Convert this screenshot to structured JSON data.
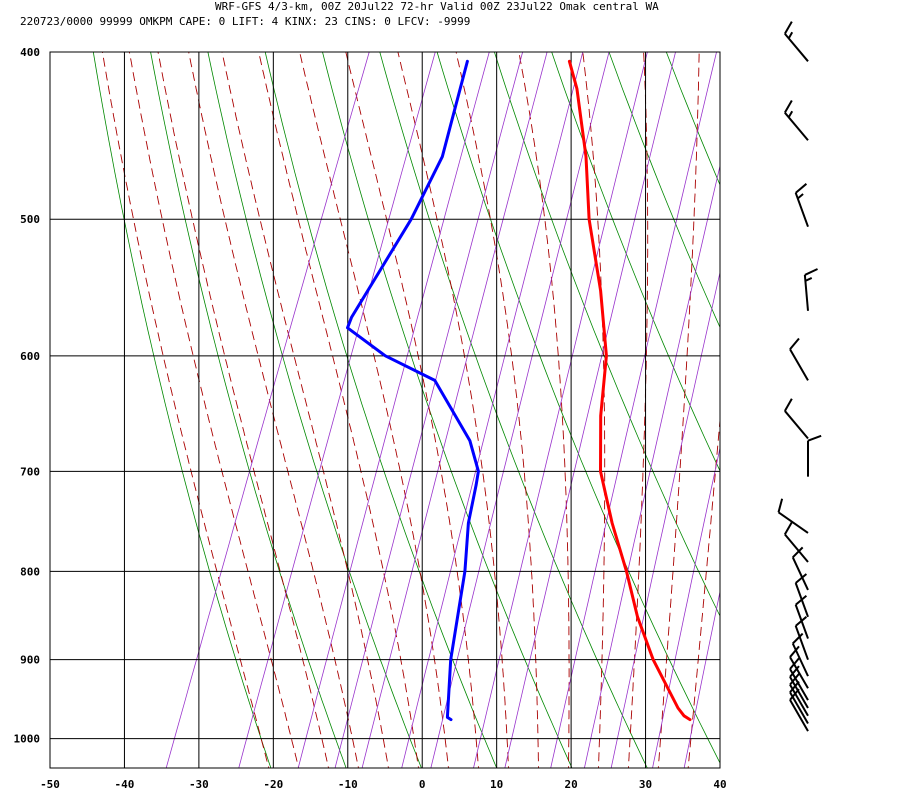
{
  "header": {
    "line1": "WRF-GFS 4/3-km, 00Z 20Jul22 72-hr Valid 00Z 23Jul22 Omak central WA",
    "line2": "220723/0000 99999  OMKPM   CAPE:     0 LIFT:     4 KINX:    23 CINS:     0 LFCV: -9999"
  },
  "chart_data": {
    "type": "line",
    "chart_kind": "skew-T log-p",
    "xlim": [
      -50,
      40
    ],
    "ylim_pressure": [
      1040,
      400
    ],
    "x_ticks": [
      -50,
      -40,
      -30,
      -20,
      -10,
      0,
      10,
      20,
      30,
      40
    ],
    "y_ticks": [
      400,
      500,
      600,
      700,
      800,
      900,
      1000
    ],
    "grid": true,
    "colors": {
      "temperature": "#ff0000",
      "dewpoint": "#0000ff",
      "dry_adiabat": "#008800",
      "moist_adiabat": "#aa0000",
      "mixing_ratio": "#9933cc",
      "grid": "#000000"
    },
    "series": [
      {
        "id": "temperature",
        "color": "#ff0000",
        "points": [
          {
            "p": 975,
            "t": 33.5
          },
          {
            "p": 970,
            "t": 32.5
          },
          {
            "p": 960,
            "t": 31.3
          },
          {
            "p": 900,
            "t": 25.5
          },
          {
            "p": 850,
            "t": 21.2
          },
          {
            "p": 800,
            "t": 17.4
          },
          {
            "p": 750,
            "t": 13.0
          },
          {
            "p": 700,
            "t": 8.8
          },
          {
            "p": 650,
            "t": 6.0
          },
          {
            "p": 600,
            "t": 3.7
          },
          {
            "p": 550,
            "t": -0.4
          },
          {
            "p": 500,
            "t": -5.6
          },
          {
            "p": 460,
            "t": -9.2
          },
          {
            "p": 420,
            "t": -13.9
          },
          {
            "p": 405,
            "t": -16.3
          }
        ]
      },
      {
        "id": "dewpoint",
        "color": "#0000ff",
        "points": [
          {
            "p": 975,
            "t": 1.4
          },
          {
            "p": 972,
            "t": 0.8
          },
          {
            "p": 900,
            "t": -1.7
          },
          {
            "p": 800,
            "t": -4.3
          },
          {
            "p": 750,
            "t": -6.3
          },
          {
            "p": 713,
            "t": -7.2
          },
          {
            "p": 700,
            "t": -7.6
          },
          {
            "p": 672,
            "t": -10.3
          },
          {
            "p": 620,
            "t": -18.1
          },
          {
            "p": 600,
            "t": -26.0
          },
          {
            "p": 578,
            "t": -32.5
          },
          {
            "p": 570,
            "t": -32.5
          },
          {
            "p": 500,
            "t": -29.5
          },
          {
            "p": 460,
            "t": -28.5
          },
          {
            "p": 405,
            "t": -30.0
          }
        ]
      }
    ],
    "wind_barbs": [
      {
        "p": 405,
        "dir": 320,
        "kt": 15
      },
      {
        "p": 450,
        "dir": 320,
        "kt": 15
      },
      {
        "p": 505,
        "dir": 340,
        "kt": 15
      },
      {
        "p": 565,
        "dir": 355,
        "kt": 15
      },
      {
        "p": 620,
        "dir": 330,
        "kt": 10
      },
      {
        "p": 670,
        "dir": 320,
        "kt": 10
      },
      {
        "p": 705,
        "dir": 0,
        "kt": 10
      },
      {
        "p": 760,
        "dir": 305,
        "kt": 10
      },
      {
        "p": 790,
        "dir": 320,
        "kt": 10
      },
      {
        "p": 820,
        "dir": 335,
        "kt": 10
      },
      {
        "p": 850,
        "dir": 340,
        "kt": 10
      },
      {
        "p": 875,
        "dir": 340,
        "kt": 10
      },
      {
        "p": 900,
        "dir": 340,
        "kt": 10
      },
      {
        "p": 920,
        "dir": 335,
        "kt": 10
      },
      {
        "p": 935,
        "dir": 330,
        "kt": 10
      },
      {
        "p": 950,
        "dir": 330,
        "kt": 10
      },
      {
        "p": 960,
        "dir": 330,
        "kt": 10
      },
      {
        "p": 970,
        "dir": 330,
        "kt": 10
      },
      {
        "p": 980,
        "dir": 330,
        "kt": 10
      },
      {
        "p": 990,
        "dir": 330,
        "kt": 10
      }
    ]
  }
}
